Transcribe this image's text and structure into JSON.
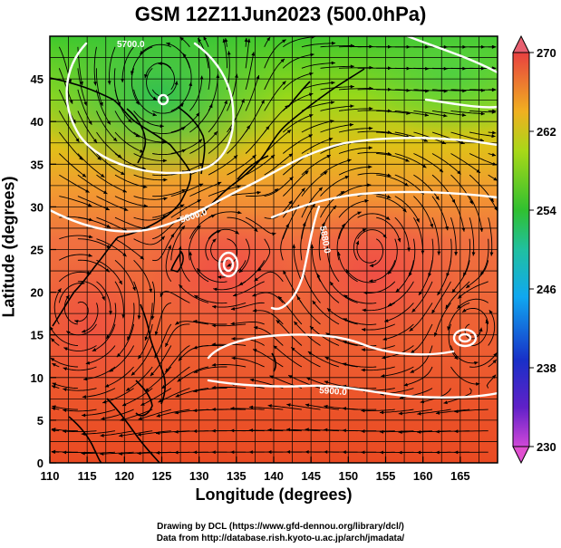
{
  "title": "GSM 12Z11Jun2023 (500.0hPa)",
  "x_axis": {
    "label": "Longitude (degrees)",
    "ticks": [
      "110",
      "115",
      "120",
      "125",
      "130",
      "135",
      "140",
      "145",
      "150",
      "155",
      "160",
      "165"
    ],
    "range": [
      110,
      170
    ]
  },
  "y_axis": {
    "label": "Latitude  (degrees)",
    "ticks": [
      "0",
      "5",
      "10",
      "15",
      "20",
      "25",
      "30",
      "35",
      "40",
      "45"
    ],
    "range": [
      0,
      50
    ]
  },
  "colorbar": {
    "labels": [
      "270",
      "262",
      "254",
      "246",
      "238",
      "230"
    ],
    "range": [
      230,
      270
    ],
    "colors": {
      "min_end": "#e040d0",
      "low": "#2a18c0",
      "mid_low": "#00a0ff",
      "mid": "#30c030",
      "mid_high": "#c8e000",
      "high": "#ff7a20",
      "max_end": "#e84040"
    }
  },
  "contour_labels": [
    "5700.0",
    "5800.0",
    "5880.0",
    "5900.0"
  ],
  "credits": {
    "line1": "Drawing by DCL (https://www.gfd-dennou.org/library/dcl/)",
    "line2": "Data from http://database.rish.kyoto-u.ac.jp/arch/jmadata/"
  }
}
